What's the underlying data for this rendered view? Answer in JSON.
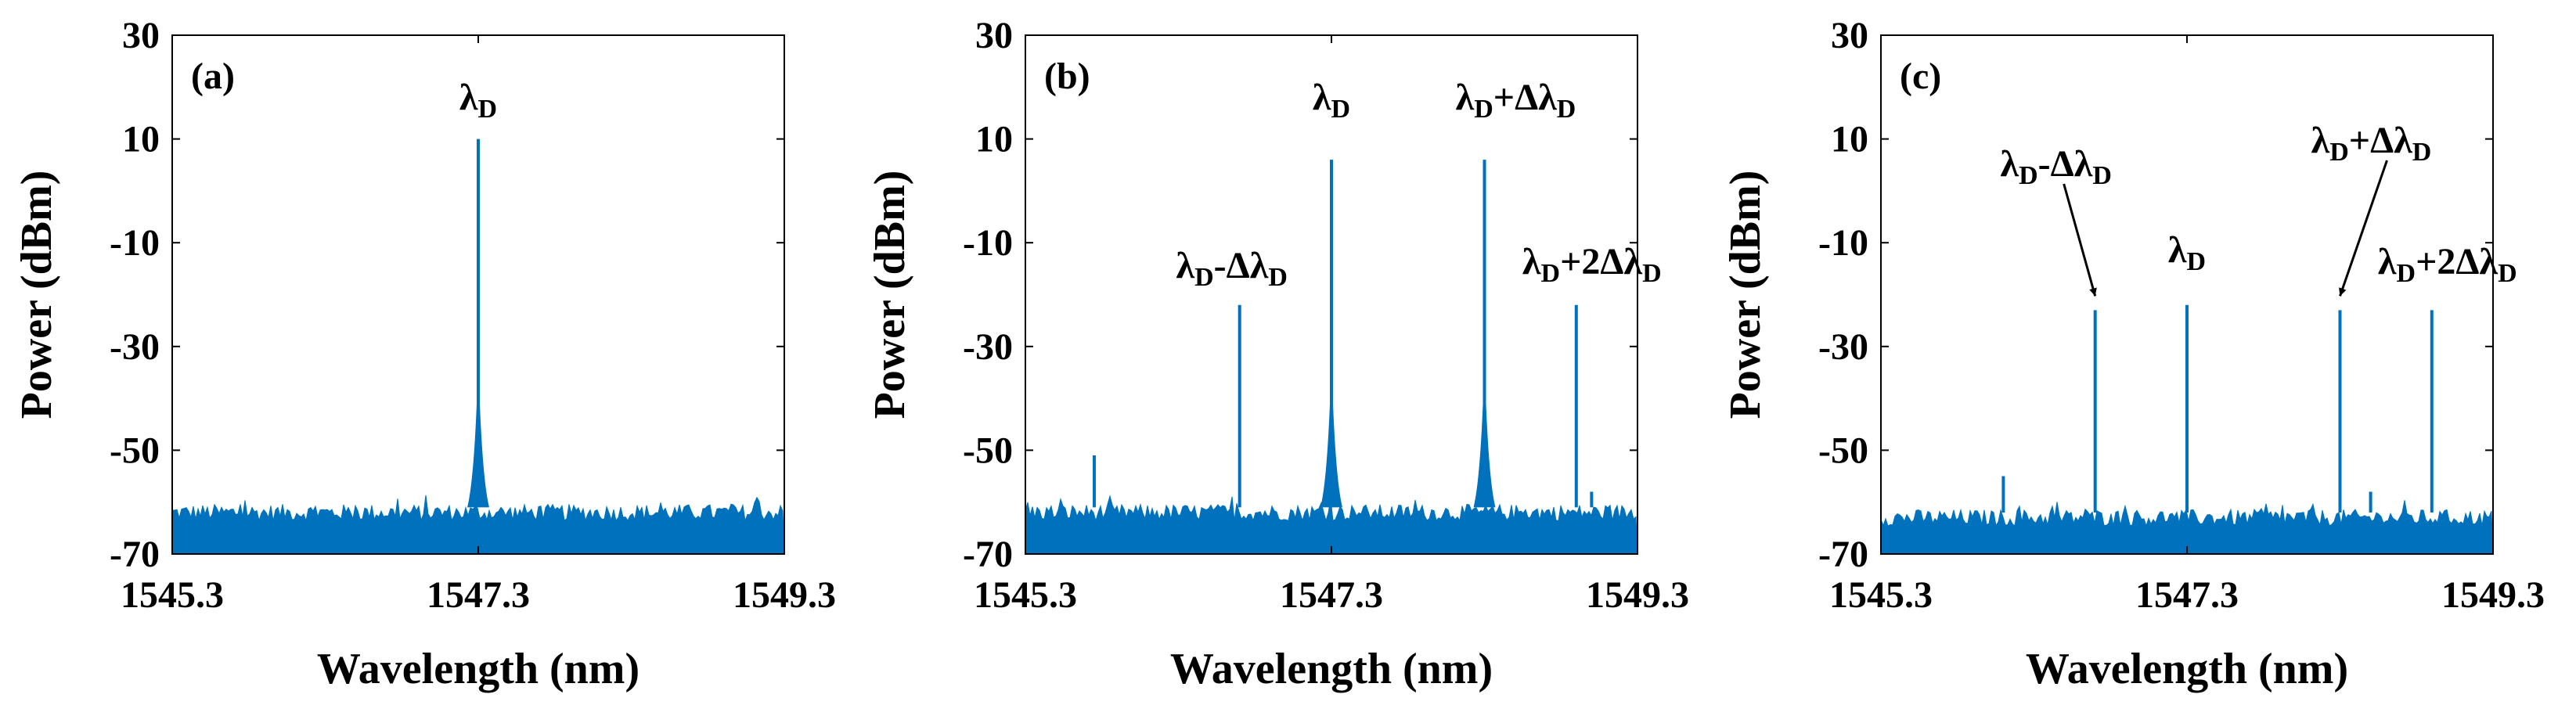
{
  "figure": {
    "panel_ids": [
      "a",
      "b",
      "c"
    ]
  },
  "chart_data": [
    {
      "type": "line",
      "panel_label": "(a)",
      "xlabel": "Wavelength (nm)",
      "ylabel": "Power (dBm)",
      "xlim": [
        1545.3,
        1549.3
      ],
      "ylim": [
        -70,
        30
      ],
      "xticks": [
        1545.3,
        1547.3,
        1549.3
      ],
      "xtick_labels": [
        "1545.3",
        "1547.3",
        "1549.3"
      ],
      "yticks": [
        30,
        10,
        -10,
        -30,
        -50,
        -70
      ],
      "ytick_labels": [
        "30",
        "10",
        "-10",
        "-30",
        "-50",
        "-70"
      ],
      "series_color": "#0072BD",
      "noise_floor_dbm": -62,
      "peaks": [
        {
          "x": 1547.3,
          "y": 10,
          "label_parts": [
            [
              "λ",
              "main"
            ],
            [
              "D",
              "sub"
            ]
          ]
        }
      ],
      "annotations": []
    },
    {
      "type": "line",
      "panel_label": "(b)",
      "xlabel": "Wavelength (nm)",
      "ylabel": "Power (dBm)",
      "xlim": [
        1545.3,
        1549.3
      ],
      "ylim": [
        -70,
        30
      ],
      "xticks": [
        1545.3,
        1547.3,
        1549.3
      ],
      "xtick_labels": [
        "1545.3",
        "1547.3",
        "1549.3"
      ],
      "yticks": [
        30,
        10,
        -10,
        -30,
        -50,
        -70
      ],
      "ytick_labels": [
        "30",
        "10",
        "-10",
        "-30",
        "-50",
        "-70"
      ],
      "series_color": "#0072BD",
      "noise_floor_dbm": -62,
      "peaks": [
        {
          "x": 1545.75,
          "y": -51
        },
        {
          "x": 1546.7,
          "y": -22,
          "label_parts": [
            [
              "λ",
              "main"
            ],
            [
              "D",
              "sub"
            ],
            [
              "-Δλ",
              "main"
            ],
            [
              "D",
              "sub"
            ]
          ]
        },
        {
          "x": 1547.3,
          "y": 6,
          "label_parts": [
            [
              "λ",
              "main"
            ],
            [
              "D",
              "sub"
            ]
          ]
        },
        {
          "x": 1548.3,
          "y": 6,
          "label_parts": [
            [
              "λ",
              "main"
            ],
            [
              "D",
              "sub"
            ],
            [
              "+Δλ",
              "main"
            ],
            [
              "D",
              "sub"
            ]
          ]
        },
        {
          "x": 1548.9,
          "y": -22,
          "label_parts": [
            [
              "λ",
              "main"
            ],
            [
              "D",
              "sub"
            ],
            [
              "+2Δλ",
              "main"
            ],
            [
              "D",
              "sub"
            ]
          ]
        },
        {
          "x": 1549.0,
          "y": -58
        }
      ],
      "annotations": []
    },
    {
      "type": "line",
      "panel_label": "(c)",
      "xlabel": "Wavelength (nm)",
      "ylabel": "Power (dBm)",
      "xlim": [
        1545.3,
        1549.3
      ],
      "ylim": [
        -70,
        30
      ],
      "xticks": [
        1545.3,
        1547.3,
        1549.3
      ],
      "xtick_labels": [
        "1545.3",
        "1547.3",
        "1549.3"
      ],
      "yticks": [
        30,
        10,
        -10,
        -30,
        -50,
        -70
      ],
      "ytick_labels": [
        "30",
        "10",
        "-10",
        "-30",
        "-50",
        "-70"
      ],
      "series_color": "#0072BD",
      "noise_floor_dbm": -63,
      "peaks": [
        {
          "x": 1546.1,
          "y": -55
        },
        {
          "x": 1546.7,
          "y": -23,
          "label_parts": [
            [
              "λ",
              "main"
            ],
            [
              "D",
              "sub"
            ],
            [
              "-Δλ",
              "main"
            ],
            [
              "D",
              "sub"
            ]
          ]
        },
        {
          "x": 1547.3,
          "y": -22,
          "label_parts": [
            [
              "λ",
              "main"
            ],
            [
              "D",
              "sub"
            ]
          ]
        },
        {
          "x": 1548.3,
          "y": -23,
          "label_parts": [
            [
              "λ",
              "main"
            ],
            [
              "D",
              "sub"
            ],
            [
              "+Δλ",
              "main"
            ],
            [
              "D",
              "sub"
            ]
          ]
        },
        {
          "x": 1548.9,
          "y": -23,
          "label_parts": [
            [
              "λ",
              "main"
            ],
            [
              "D",
              "sub"
            ],
            [
              "+2Δλ",
              "main"
            ],
            [
              "D",
              "sub"
            ]
          ]
        },
        {
          "x": 1548.5,
          "y": -58
        }
      ],
      "annotations": [
        {
          "type": "arrow",
          "from_peak": 1,
          "to_peak": 1
        },
        {
          "type": "arrow",
          "from_peak": 3,
          "to_peak": 3
        }
      ]
    }
  ]
}
